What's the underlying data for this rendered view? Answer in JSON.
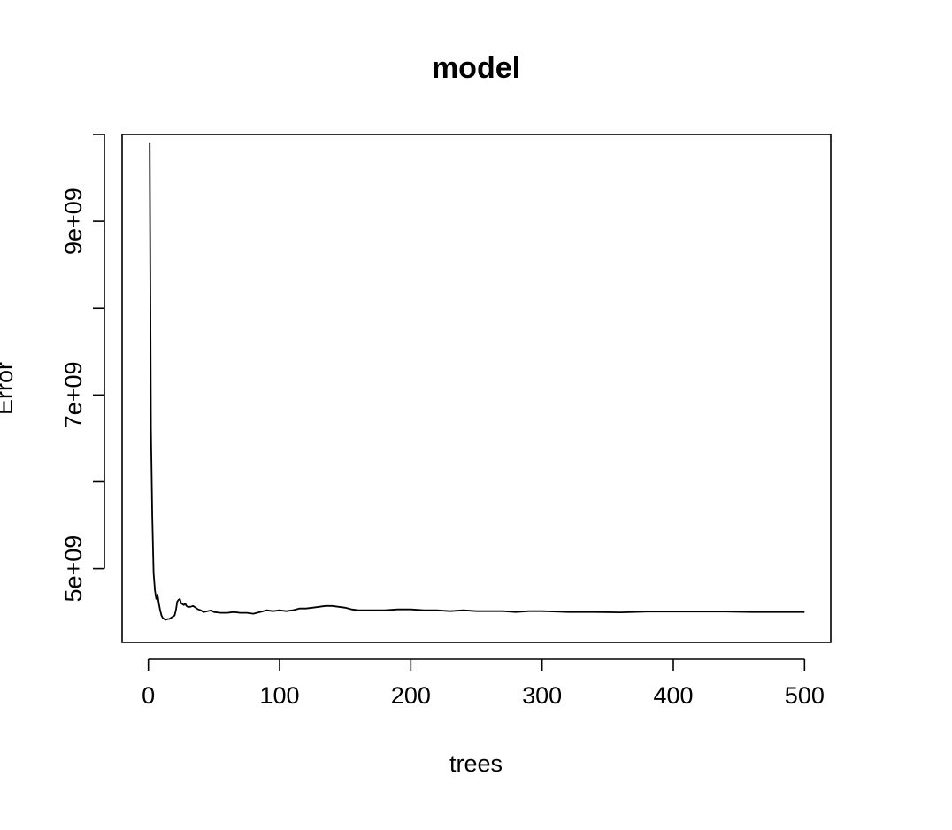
{
  "chart_data": {
    "type": "line",
    "title": "model",
    "xlabel": "trees",
    "ylabel": "Error",
    "xlim": [
      -20,
      520
    ],
    "ylim": [
      4150000000,
      10000000000
    ],
    "x_ticks": [
      0,
      100,
      200,
      300,
      400,
      500
    ],
    "x_tick_labels": [
      "0",
      "100",
      "200",
      "300",
      "400",
      "500"
    ],
    "y_ticks": [
      5000000000,
      6000000000,
      7000000000,
      8000000000,
      9000000000,
      10000000000
    ],
    "y_tick_labels": [
      "5e+09",
      "",
      "7e+09",
      "",
      "9e+09",
      ""
    ],
    "grid": false,
    "series": [
      {
        "x": [
          1,
          2,
          3,
          4,
          5,
          6,
          7,
          8,
          9,
          10,
          11,
          12,
          13,
          14,
          15,
          16,
          17,
          18,
          19,
          20,
          21,
          22,
          23,
          24,
          25,
          26,
          27,
          28,
          29,
          30,
          32,
          34,
          36,
          38,
          40,
          42,
          45,
          48,
          50,
          55,
          60,
          65,
          70,
          75,
          80,
          85,
          90,
          95,
          100,
          105,
          110,
          115,
          120,
          125,
          130,
          135,
          140,
          145,
          150,
          155,
          160,
          165,
          170,
          180,
          190,
          200,
          210,
          220,
          230,
          240,
          250,
          260,
          270,
          280,
          290,
          300,
          320,
          340,
          360,
          380,
          400,
          420,
          440,
          460,
          480,
          500
        ],
        "values": [
          9900000000,
          6600000000,
          5600000000,
          4950000000,
          4750000000,
          4650000000,
          4700000000,
          4600000000,
          4520000000,
          4460000000,
          4430000000,
          4420000000,
          4410000000,
          4415000000,
          4420000000,
          4420000000,
          4430000000,
          4440000000,
          4450000000,
          4460000000,
          4520000000,
          4620000000,
          4640000000,
          4650000000,
          4600000000,
          4590000000,
          4580000000,
          4600000000,
          4570000000,
          4560000000,
          4560000000,
          4570000000,
          4550000000,
          4530000000,
          4520000000,
          4500000000,
          4510000000,
          4520000000,
          4500000000,
          4490000000,
          4490000000,
          4500000000,
          4490000000,
          4490000000,
          4480000000,
          4500000000,
          4520000000,
          4510000000,
          4520000000,
          4510000000,
          4520000000,
          4540000000,
          4540000000,
          4550000000,
          4560000000,
          4570000000,
          4570000000,
          4560000000,
          4550000000,
          4530000000,
          4520000000,
          4520000000,
          4520000000,
          4520000000,
          4530000000,
          4530000000,
          4520000000,
          4520000000,
          4510000000,
          4520000000,
          4510000000,
          4510000000,
          4510000000,
          4500000000,
          4510000000,
          4510000000,
          4500000000,
          4500000000,
          4495000000,
          4505000000,
          4505000000,
          4505000000,
          4505000000,
          4500000000,
          4500000000,
          4500000000
        ]
      }
    ]
  }
}
